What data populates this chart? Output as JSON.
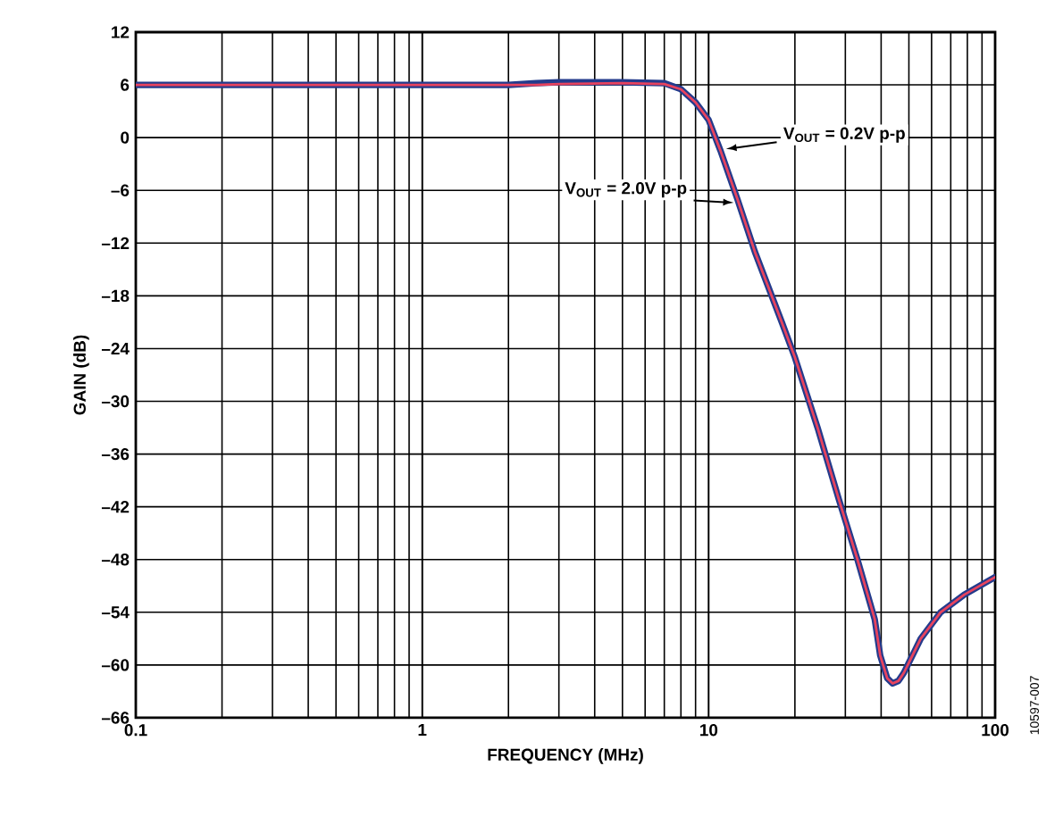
{
  "chart_data": {
    "type": "line",
    "xlabel": "FREQUENCY (MHz)",
    "ylabel": "GAIN (dB)",
    "log": "x",
    "grid": true,
    "xlim": [
      0.1,
      100
    ],
    "ylim": [
      -66,
      12
    ],
    "xticks": [
      0.1,
      1,
      10,
      100
    ],
    "yticks": [
      12,
      6,
      0,
      {
        "value": -6,
        "label": "–6"
      },
      {
        "value": -12,
        "label": "–12"
      },
      {
        "value": -18,
        "label": "–18"
      },
      {
        "value": -24,
        "label": "–24"
      },
      {
        "value": -30,
        "label": "–30"
      },
      {
        "value": -36,
        "label": "–36"
      },
      {
        "value": -42,
        "label": "–42"
      },
      {
        "value": -48,
        "label": "–48"
      },
      {
        "value": -54,
        "label": "–54"
      },
      {
        "value": -60,
        "label": "–60"
      },
      {
        "value": -66,
        "label": "–66"
      }
    ],
    "series": [
      {
        "color": "#233b8c",
        "x": [
          0.1,
          0.2,
          0.5,
          1,
          2,
          2.5,
          3,
          5,
          7,
          8,
          9,
          10,
          11,
          12.6,
          14.5,
          18,
          20,
          24,
          28.5,
          33,
          38,
          39.7,
          42,
          43.9,
          46,
          48,
          55,
          64.5,
          78,
          100
        ],
        "values": [
          6,
          6,
          6,
          6,
          6,
          6.2,
          6.3,
          6.3,
          6.2,
          5.5,
          4,
          2,
          -1.5,
          -7,
          -13,
          -21,
          -25,
          -33,
          -41.2,
          -47.9,
          -54.8,
          -58.9,
          -61.5,
          -62.1,
          -61.8,
          -60.9,
          -57,
          -54,
          -52,
          -50
        ]
      },
      {
        "color": "#e8435e",
        "x": [
          0.1,
          0.2,
          0.5,
          1,
          2,
          2.5,
          3,
          5,
          7,
          8,
          9,
          10,
          11,
          12.6,
          14.5,
          18,
          20,
          24,
          28.5,
          33,
          38,
          39.7,
          42,
          43.9,
          46,
          48,
          55,
          64.5,
          78,
          100
        ],
        "values": [
          6,
          6,
          6,
          6,
          6,
          6,
          6.1,
          6.2,
          6.1,
          5.5,
          4,
          2,
          -1.5,
          -7,
          -13,
          -21,
          -25,
          -33,
          -41.2,
          -47.9,
          -54.8,
          -58.9,
          -61.5,
          -62.1,
          -61.8,
          -60.9,
          -57,
          -54,
          -52,
          -50
        ]
      }
    ],
    "annotations": [
      {
        "text": "V$_{OUT}$ = 0.2V p-p",
        "x": 11,
        "y": -1.5
      },
      {
        "text": "V$_{OUT}$ = 2.0V p-p",
        "x": 12.6,
        "y": -7
      },
      "10597-007"
    ]
  }
}
